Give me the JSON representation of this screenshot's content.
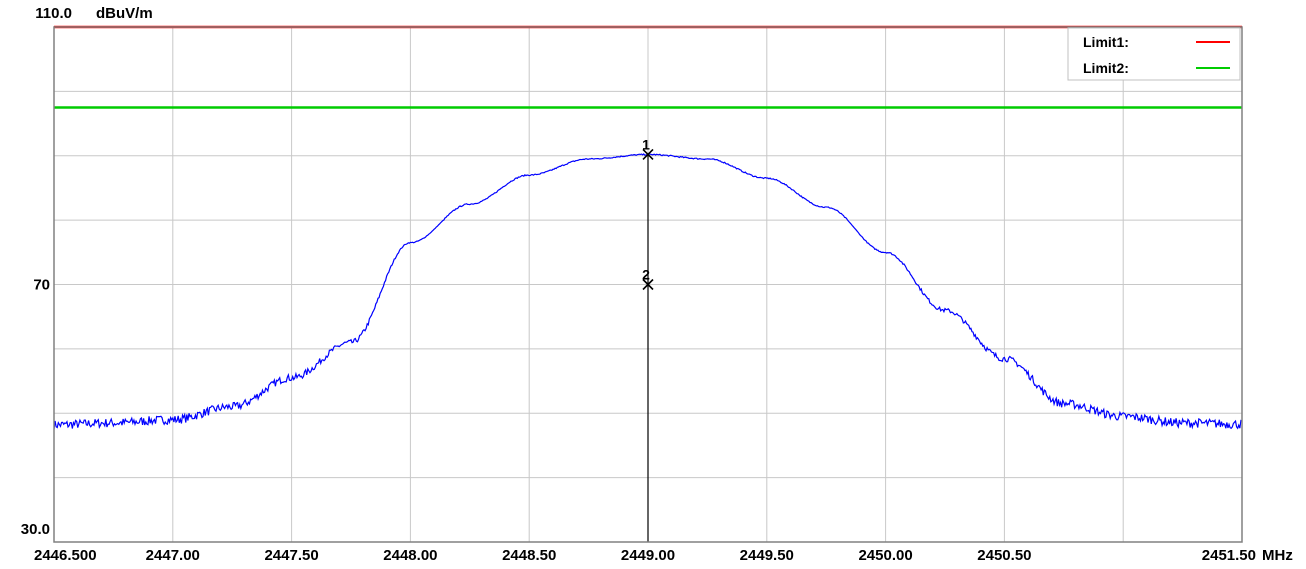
{
  "chart_data": {
    "type": "line",
    "ylabel": "dBuV/m",
    "xunit": "MHz",
    "xlim": [
      2446.5,
      2451.5
    ],
    "ylim": [
      30.0,
      110.0
    ],
    "x_ticks": [
      {
        "value": 2446.5,
        "label": "2446.500"
      },
      {
        "value": 2447.0,
        "label": "2447.00"
      },
      {
        "value": 2447.5,
        "label": "2447.50"
      },
      {
        "value": 2448.0,
        "label": "2448.00"
      },
      {
        "value": 2448.5,
        "label": "2448.50"
      },
      {
        "value": 2449.0,
        "label": "2449.00"
      },
      {
        "value": 2449.5,
        "label": "2449.50"
      },
      {
        "value": 2450.0,
        "label": "2450.00"
      },
      {
        "value": 2450.5,
        "label": "2450.50"
      },
      {
        "value": 2451.5,
        "label": "2451.50"
      }
    ],
    "y_ticks": [
      {
        "value": 110.0,
        "label": "110.0"
      },
      {
        "value": 70,
        "label": "70"
      },
      {
        "value": 30.0,
        "label": "30.0"
      }
    ],
    "grid": true,
    "limits": [
      {
        "name": "Limit1:",
        "value": 110.0,
        "color": "#ff0000"
      },
      {
        "name": "Limit2:",
        "value": 97.5,
        "color": "#00cc00"
      }
    ],
    "series": [
      {
        "color": "#0000ff",
        "x": [
          2446.5,
          2446.75,
          2447.0,
          2447.25,
          2447.5,
          2447.75,
          2448.0,
          2448.25,
          2448.5,
          2448.75,
          2449.0,
          2449.25,
          2449.5,
          2449.75,
          2450.0,
          2450.25,
          2450.5,
          2450.75,
          2451.0,
          2451.25,
          2451.5
        ],
        "values": [
          48.2,
          48.5,
          49.0,
          51.0,
          55.5,
          61.0,
          76.5,
          82.5,
          87.0,
          89.5,
          90.2,
          89.5,
          86.5,
          82.0,
          75.0,
          66.0,
          58.5,
          51.5,
          49.5,
          48.5,
          48.3
        ]
      }
    ],
    "markers": [
      {
        "label": "1",
        "x": 2449.0,
        "y": 90.2
      },
      {
        "label": "2",
        "x": 2449.0,
        "y": 70.0
      }
    ],
    "legend_position": "top-right"
  }
}
